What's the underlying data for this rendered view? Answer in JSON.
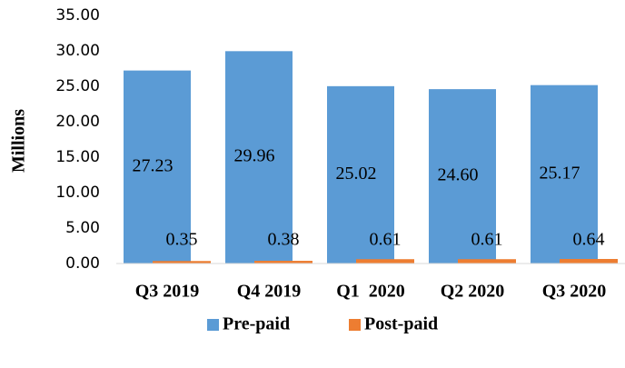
{
  "chart_data": {
    "type": "bar",
    "y_label": "Millions",
    "categories": [
      "Q3 2019",
      "Q4 2019",
      "Q1  2020",
      "Q2 2020",
      "Q3 2020"
    ],
    "series": [
      {
        "name": "Pre-paid",
        "color": "#5b9bd5",
        "values": [
          27.23,
          29.96,
          25.02,
          24.6,
          25.17
        ],
        "value_labels": [
          "27.23",
          "29.96",
          "25.02",
          "24.60",
          "25.17"
        ]
      },
      {
        "name": "Post-paid",
        "color": "#ed7d31",
        "values": [
          0.35,
          0.38,
          0.61,
          0.61,
          0.64
        ],
        "value_labels": [
          "0.35",
          "0.38",
          "0.61",
          "0.61",
          "0.64"
        ]
      }
    ],
    "ylim": [
      0,
      35
    ],
    "yticks": [
      {
        "value": 0,
        "label": "0.00"
      },
      {
        "value": 5,
        "label": "5.00"
      },
      {
        "value": 10,
        "label": "10.00"
      },
      {
        "value": 15,
        "label": "15.00"
      },
      {
        "value": 20,
        "label": "20.00"
      },
      {
        "value": 25,
        "label": "25.00"
      },
      {
        "value": 30,
        "label": "30.00"
      },
      {
        "value": 35,
        "label": "35.00"
      }
    ],
    "legend": "bottom"
  }
}
